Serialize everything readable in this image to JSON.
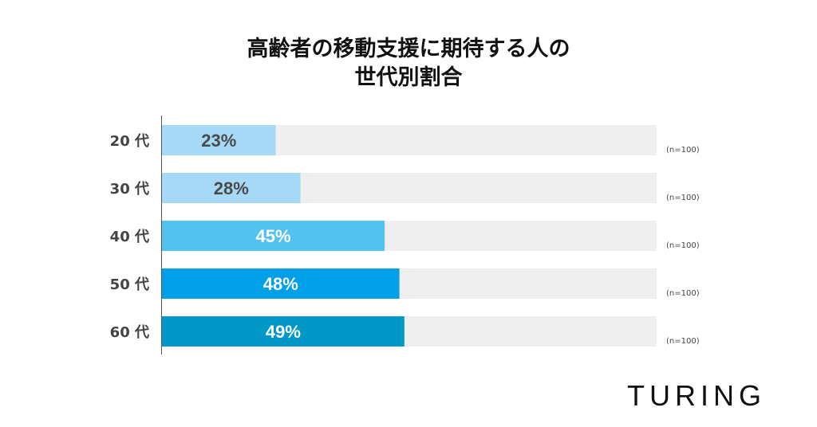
{
  "chart_data": {
    "type": "bar",
    "orientation": "horizontal",
    "title_lines": [
      "高齢者の移動支援に期待する人の",
      "世代別割合"
    ],
    "categories": [
      "20 代",
      "30 代",
      "40 代",
      "50 代",
      "60 代"
    ],
    "values": [
      23,
      28,
      45,
      48,
      49
    ],
    "value_labels": [
      "23%",
      "28%",
      "45%",
      "48%",
      "49%"
    ],
    "sample_labels": [
      "(n=100)",
      "(n=100)",
      "(n=100)",
      "(n=100)",
      "(n=100)"
    ],
    "xlim": [
      0,
      100
    ],
    "grid": false,
    "colors": [
      "#a6d9f5",
      "#a6d9f5",
      "#53c2ef",
      "#00a0e9",
      "#0098c7"
    ],
    "label_colors": [
      "#4a4a4a",
      "#4a4a4a",
      "#ffffff",
      "#ffffff",
      "#ffffff"
    ],
    "track_color": "#efefef"
  },
  "logo": "TURING"
}
